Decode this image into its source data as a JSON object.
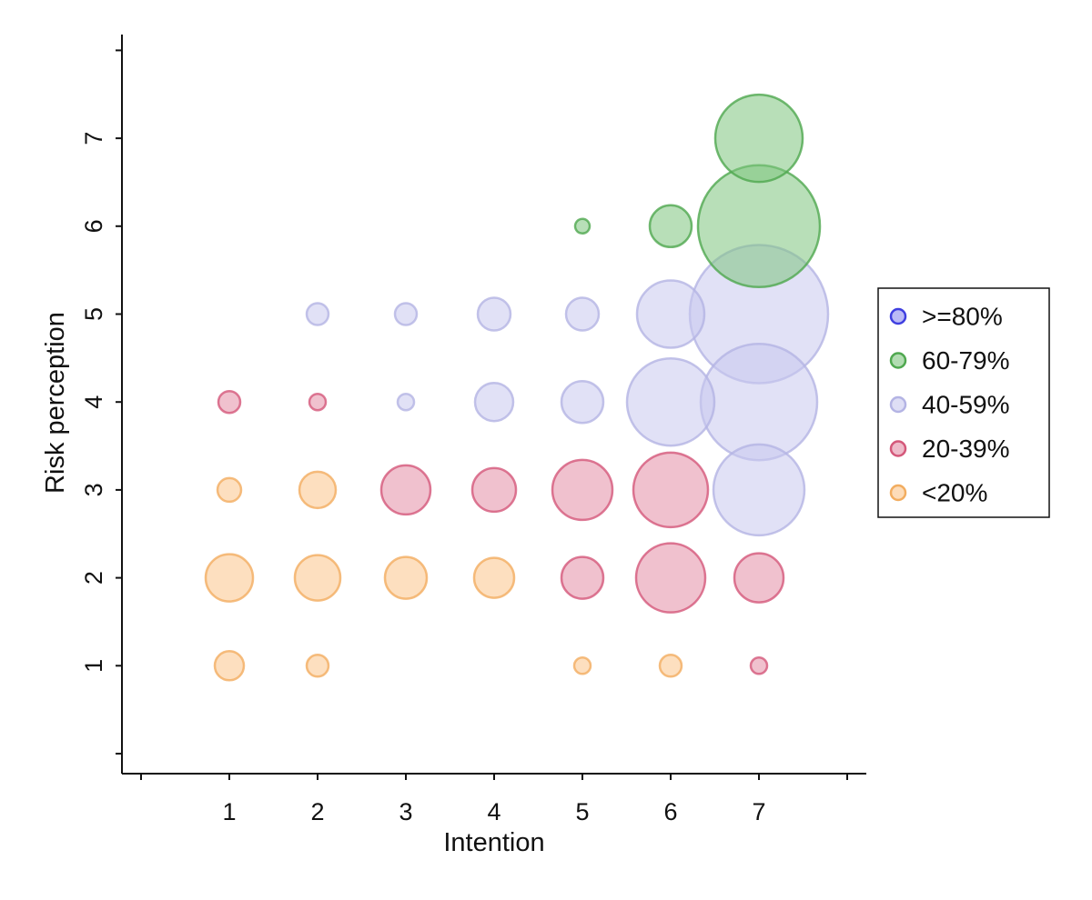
{
  "chart_data": {
    "type": "scatter",
    "subtype": "bubble",
    "xlabel": "Intention",
    "ylabel": "Risk perception",
    "xlim": [
      0,
      8
    ],
    "ylim": [
      0,
      8
    ],
    "x_ticks": [
      1,
      2,
      3,
      4,
      5,
      6,
      7
    ],
    "y_ticks": [
      1,
      2,
      3,
      4,
      5,
      6,
      7
    ],
    "grid": false,
    "legend_position": "right",
    "groups": [
      {
        "name": ">=80%",
        "color": "#3f3fe0",
        "fill": "#8c8cf0"
      },
      {
        "name": "60-79%",
        "color": "#4fa84f",
        "fill": "#7ec47e"
      },
      {
        "name": "40-59%",
        "color": "#b4b4e4",
        "fill": "#c8c8ee"
      },
      {
        "name": "20-39%",
        "color": "#d4587a",
        "fill": "#e38ea6"
      },
      {
        "name": "<20%",
        "color": "#f2ad60",
        "fill": "#fcc48a"
      }
    ],
    "points": [
      {
        "x": 1,
        "y": 1,
        "size": 16,
        "group": "<20%"
      },
      {
        "x": 2,
        "y": 1,
        "size": 12,
        "group": "<20%"
      },
      {
        "x": 5,
        "y": 1,
        "size": 9,
        "group": "<20%"
      },
      {
        "x": 6,
        "y": 1,
        "size": 12,
        "group": "<20%"
      },
      {
        "x": 7,
        "y": 1,
        "size": 9,
        "group": "20-39%"
      },
      {
        "x": 1,
        "y": 2,
        "size": 26,
        "group": "<20%"
      },
      {
        "x": 2,
        "y": 2,
        "size": 25,
        "group": "<20%"
      },
      {
        "x": 3,
        "y": 2,
        "size": 23,
        "group": "<20%"
      },
      {
        "x": 4,
        "y": 2,
        "size": 22,
        "group": "<20%"
      },
      {
        "x": 5,
        "y": 2,
        "size": 23,
        "group": "20-39%"
      },
      {
        "x": 6,
        "y": 2,
        "size": 38,
        "group": "20-39%"
      },
      {
        "x": 7,
        "y": 2,
        "size": 27,
        "group": "20-39%"
      },
      {
        "x": 1,
        "y": 3,
        "size": 13,
        "group": "<20%"
      },
      {
        "x": 2,
        "y": 3,
        "size": 20,
        "group": "<20%"
      },
      {
        "x": 3,
        "y": 3,
        "size": 27,
        "group": "20-39%"
      },
      {
        "x": 4,
        "y": 3,
        "size": 24,
        "group": "20-39%"
      },
      {
        "x": 5,
        "y": 3,
        "size": 33,
        "group": "20-39%"
      },
      {
        "x": 6,
        "y": 3,
        "size": 41,
        "group": "20-39%"
      },
      {
        "x": 7,
        "y": 3,
        "size": 50,
        "group": "40-59%"
      },
      {
        "x": 1,
        "y": 4,
        "size": 12,
        "group": "20-39%"
      },
      {
        "x": 2,
        "y": 4,
        "size": 9,
        "group": "20-39%"
      },
      {
        "x": 3,
        "y": 4,
        "size": 9,
        "group": "40-59%"
      },
      {
        "x": 4,
        "y": 4,
        "size": 21,
        "group": "40-59%"
      },
      {
        "x": 5,
        "y": 4,
        "size": 23,
        "group": "40-59%"
      },
      {
        "x": 6,
        "y": 4,
        "size": 48,
        "group": "40-59%"
      },
      {
        "x": 7,
        "y": 4,
        "size": 64,
        "group": "40-59%"
      },
      {
        "x": 2,
        "y": 5,
        "size": 12,
        "group": "40-59%"
      },
      {
        "x": 3,
        "y": 5,
        "size": 12,
        "group": "40-59%"
      },
      {
        "x": 4,
        "y": 5,
        "size": 18,
        "group": "40-59%"
      },
      {
        "x": 5,
        "y": 5,
        "size": 18,
        "group": "40-59%"
      },
      {
        "x": 6,
        "y": 5,
        "size": 37,
        "group": "40-59%"
      },
      {
        "x": 7,
        "y": 5,
        "size": 76,
        "group": "40-59%"
      },
      {
        "x": 5,
        "y": 6,
        "size": 8,
        "group": "60-79%"
      },
      {
        "x": 6,
        "y": 6,
        "size": 23,
        "group": "60-79%"
      },
      {
        "x": 7,
        "y": 6,
        "size": 67,
        "group": "60-79%"
      },
      {
        "x": 7,
        "y": 7,
        "size": 48,
        "group": "60-79%"
      }
    ]
  }
}
